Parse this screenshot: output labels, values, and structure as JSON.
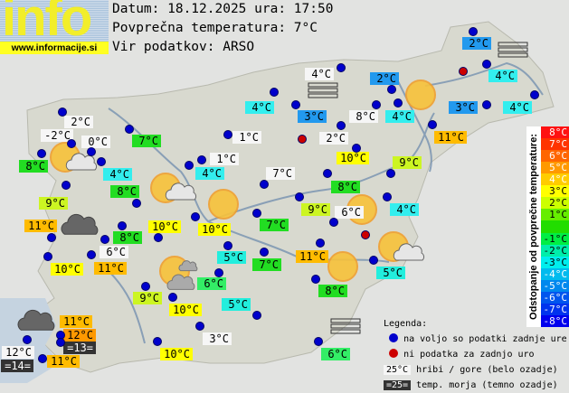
{
  "logo": {
    "word": "info",
    "url": "www.informacije.si"
  },
  "header": {
    "date_line": "Datum: 18.12.2025 ura: 17:50",
    "avg_line": "Povprečna temperatura: 7°C",
    "source_line": "Vir podatkov: ARSO"
  },
  "colors": {
    "white": "#f6f6f6",
    "cyan": "#33eeee",
    "teal": "#22eedd",
    "blue": "#2299ee",
    "green": "#22dd22",
    "green2": "#33ee66",
    "yellowgreen": "#ccf522",
    "yellow": "#ffff00",
    "orange": "#ffbb00",
    "darkorange": "#ff9900",
    "sea": "#333333"
  },
  "stations": [
    {
      "t": "2°C",
      "c": "blue"
    },
    {
      "t": "4°C",
      "c": "white"
    },
    {
      "t": "2°C",
      "c": "blue"
    },
    {
      "t": "4°C",
      "c": "cyan"
    },
    {
      "t": "4°C",
      "c": "cyan"
    },
    {
      "t": "3°C",
      "c": "blue"
    },
    {
      "t": "8°C",
      "c": "white"
    },
    {
      "t": "4°C",
      "c": "cyan"
    },
    {
      "t": "3°C",
      "c": "blue"
    },
    {
      "t": "4°C",
      "c": "cyan"
    },
    {
      "t": "2°C",
      "c": "white"
    },
    {
      "t": "11°C",
      "c": "orange"
    },
    {
      "t": "10°C",
      "c": "yellow"
    },
    {
      "t": "9°C",
      "c": "yellowgreen"
    },
    {
      "t": "2°C",
      "c": "white"
    },
    {
      "t": "-2°C",
      "c": "white"
    },
    {
      "t": "0°C",
      "c": "white"
    },
    {
      "t": "7°C",
      "c": "green"
    },
    {
      "t": "1°C",
      "c": "white"
    },
    {
      "t": "8°C",
      "c": "green"
    },
    {
      "t": "4°C",
      "c": "cyan"
    },
    {
      "t": "1°C",
      "c": "white"
    },
    {
      "t": "4°C",
      "c": "cyan"
    },
    {
      "t": "7°C",
      "c": "white"
    },
    {
      "t": "8°C",
      "c": "green"
    },
    {
      "t": "8°C",
      "c": "green"
    },
    {
      "t": "9°C",
      "c": "yellowgreen"
    },
    {
      "t": "9°C",
      "c": "yellowgreen"
    },
    {
      "t": "6°C",
      "c": "white"
    },
    {
      "t": "4°C",
      "c": "cyan"
    },
    {
      "t": "7°C",
      "c": "green"
    },
    {
      "t": "11°C",
      "c": "orange"
    },
    {
      "t": "10°C",
      "c": "yellow"
    },
    {
      "t": "10°C",
      "c": "yellow"
    },
    {
      "t": "8°C",
      "c": "green"
    },
    {
      "t": "6°C",
      "c": "white"
    },
    {
      "t": "11°C",
      "c": "orange"
    },
    {
      "t": "5°C",
      "c": "teal"
    },
    {
      "t": "7°C",
      "c": "green"
    },
    {
      "t": "10°C",
      "c": "yellow"
    },
    {
      "t": "11°C",
      "c": "orange"
    },
    {
      "t": "5°C",
      "c": "teal"
    },
    {
      "t": "6°C",
      "c": "green2"
    },
    {
      "t": "8°C",
      "c": "green"
    },
    {
      "t": "9°C",
      "c": "yellowgreen"
    },
    {
      "t": "5°C",
      "c": "teal"
    },
    {
      "t": "10°C",
      "c": "yellow"
    },
    {
      "t": "11°C",
      "c": "orange"
    },
    {
      "t": "12°C",
      "c": "darkorange"
    },
    {
      "t": "3°C",
      "c": "white"
    },
    {
      "t": "6°C",
      "c": "green2"
    },
    {
      "t": "10°C",
      "c": "yellow"
    },
    {
      "t": "12°C",
      "c": "white"
    },
    {
      "t": "=13=",
      "c": "sea"
    },
    {
      "t": "=14=",
      "c": "sea"
    },
    {
      "t": "11°C",
      "c": "orange"
    }
  ],
  "legend": {
    "title": "Legenda:",
    "available": "na voljo so podatki zadnje ure",
    "missing": "ni podatka za zadnjo uro",
    "mountain_sample": "25°C",
    "mountain_text": "hribi / gore (belo ozadje)",
    "sea_sample": "=25=",
    "sea_text": "temp. morja (temno ozadje)",
    "available_color": "#0000cc",
    "missing_color": "#cc0000"
  },
  "scale": {
    "title": "Odstopanje od povprečne temperature:",
    "steps": [
      {
        "label": "8°C",
        "color": "#ff1111"
      },
      {
        "label": "7°C",
        "color": "#ff3300"
      },
      {
        "label": "6°C",
        "color": "#ff6600"
      },
      {
        "label": "5°C",
        "color": "#ff9900"
      },
      {
        "label": "4°C",
        "color": "#ffcc00"
      },
      {
        "label": "3°C",
        "color": "#ffff00"
      },
      {
        "label": "2°C",
        "color": "#ccff00"
      },
      {
        "label": "1°C",
        "color": "#66ee00"
      },
      {
        "label": "",
        "color": "#22dd00"
      },
      {
        "label": "-1°C",
        "color": "#00ee44"
      },
      {
        "label": "-2°C",
        "color": "#00eeaa"
      },
      {
        "label": "-3°C",
        "color": "#00eeee"
      },
      {
        "label": "-4°C",
        "color": "#00bbee"
      },
      {
        "label": "-5°C",
        "color": "#0088ee"
      },
      {
        "label": "-6°C",
        "color": "#0055ee"
      },
      {
        "label": "-7°C",
        "color": "#0033ee"
      },
      {
        "label": "-8°C",
        "color": "#0000ee"
      }
    ]
  }
}
